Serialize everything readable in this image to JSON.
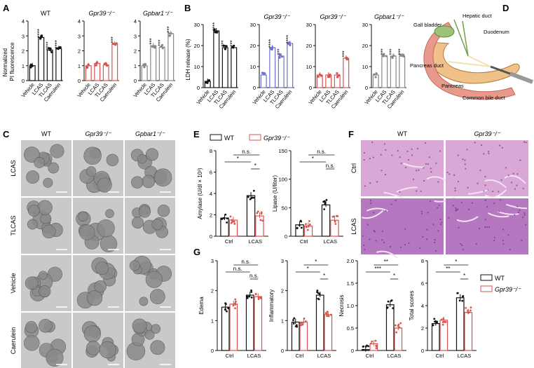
{
  "panel_labels": {
    "A": "A",
    "B": "B",
    "C": "C",
    "D": "D",
    "E": "E",
    "F": "F",
    "G": "G"
  },
  "colors": {
    "black": "#111111",
    "red": "#d9534f",
    "blue": "#6b73c7",
    "gray": "#888888"
  },
  "panel_a": {
    "ylabel": "Normalized\nPI fluorescence",
    "categories": [
      "Vehicle",
      "LCAS",
      "TLCAS",
      "Caerulein"
    ],
    "charts": [
      {
        "title": "WT",
        "ylim": [
          0,
          4
        ],
        "yticks": [
          "0",
          "1",
          "2",
          "3",
          "4"
        ],
        "color": "#111111",
        "values": [
          1.0,
          2.9,
          2.05,
          2.15
        ],
        "stars": [
          "",
          "****",
          "****",
          "****"
        ]
      },
      {
        "title": "Gpr39⁻/⁻",
        "ylim": [
          0,
          4
        ],
        "yticks": [
          "0",
          "1",
          "2",
          "3",
          "4"
        ],
        "color": "#d9534f",
        "values": [
          1.0,
          1.15,
          1.05,
          2.45
        ],
        "stars": [
          "",
          "",
          "",
          "***"
        ]
      },
      {
        "title": "Gpbar1⁻/⁻",
        "ylim": [
          0,
          4
        ],
        "yticks": [
          "0",
          "1",
          "2",
          "3",
          "4"
        ],
        "color": "#888888",
        "values": [
          1.0,
          2.35,
          2.25,
          3.15
        ],
        "stars": [
          "",
          "***",
          "***",
          "***"
        ]
      }
    ]
  },
  "panel_b": {
    "ylabel": "LDH release (%)",
    "categories": [
      "Vehicle",
      "LCAS",
      "TLCAS",
      "Caerulein"
    ],
    "charts": [
      {
        "title": "",
        "ylim": [
          0,
          30
        ],
        "yticks": [
          "0",
          "10",
          "20",
          "30"
        ],
        "color": "#111111",
        "values": [
          3,
          27,
          19,
          19
        ],
        "stars": [
          "",
          "****",
          "***",
          "***"
        ]
      },
      {
        "title": "Gpr39⁻/⁻",
        "ylim": [
          0,
          30
        ],
        "yticks": [
          "0",
          "10",
          "20",
          "30"
        ],
        "color": "#6b73c7",
        "values": [
          6,
          19,
          15,
          21
        ],
        "stars": [
          "",
          "****",
          "***",
          "****"
        ]
      },
      {
        "title": "Gpr39⁻/⁻",
        "ylim": [
          0,
          30
        ],
        "yticks": [
          "0",
          "10",
          "20",
          "30"
        ],
        "color": "#d9534f",
        "values": [
          6,
          6,
          6,
          14
        ],
        "stars": [
          "",
          "",
          "",
          "***"
        ]
      },
      {
        "title": "Gpbar1⁻/⁻",
        "ylim": [
          0,
          30
        ],
        "yticks": [
          "0",
          "10",
          "20",
          "30"
        ],
        "color": "#888888",
        "values": [
          6,
          15,
          15,
          15
        ],
        "stars": [
          "",
          "***",
          "***",
          "***"
        ]
      }
    ]
  },
  "panel_c": {
    "columns": [
      "WT",
      "Gpr39⁻/⁻",
      "Gpbar1⁻/⁻"
    ],
    "rows": [
      "LCAS",
      "TLCAS",
      "Vehicle",
      "Caerulein"
    ]
  },
  "panel_d": {
    "labels": [
      "Hepatic duct",
      "Gall bladder",
      "Duodenum",
      "Pancreas duct",
      "Pancreas",
      "Common bile duct"
    ]
  },
  "panel_e": {
    "legend": [
      "WT",
      "Gpr39⁻/⁻"
    ],
    "categories": [
      "Ctrl",
      "LCAS"
    ],
    "charts": [
      {
        "ylabel": "Amylase (U/dl × 10³)",
        "ylim": [
          0,
          8
        ],
        "yticks": [
          "0",
          "2",
          "4",
          "6",
          "8"
        ],
        "values": {
          "wt": [
            1.7,
            3.8
          ],
          "ko": [
            1.5,
            1.9
          ]
        },
        "sig": [
          "*",
          "*",
          "n.s."
        ]
      },
      {
        "ylabel": "Lipase (U/liter)",
        "ylim": [
          0,
          150
        ],
        "yticks": [
          "0",
          "50",
          "100",
          "150"
        ],
        "values": {
          "wt": [
            20,
            55
          ],
          "ko": [
            18,
            28
          ]
        },
        "sig": [
          "*",
          "n.s.",
          "n.s."
        ]
      }
    ]
  },
  "panel_f": {
    "columns": [
      "WT",
      "Gpr39⁻/⁻"
    ],
    "rows": [
      "Ctrl",
      "LCAS"
    ]
  },
  "panel_g": {
    "legend": [
      "WT",
      "Gpr39⁻/⁻"
    ],
    "categories": [
      "Ctrl",
      "LCAS"
    ],
    "charts": [
      {
        "ylabel": "Edema",
        "ylim": [
          0,
          3
        ],
        "yticks": [
          "0",
          "1",
          "2",
          "3"
        ],
        "values": {
          "wt": [
            1.45,
            1.85
          ],
          "ko": [
            1.55,
            1.8
          ]
        },
        "sig": [
          "n.s.",
          "n.s.",
          "n.s."
        ]
      },
      {
        "ylabel": "Inflammatory",
        "ylim": [
          0,
          3
        ],
        "yticks": [
          "0",
          "1",
          "2",
          "3"
        ],
        "values": {
          "wt": [
            0.95,
            1.85
          ],
          "ko": [
            0.95,
            1.2
          ]
        },
        "sig": [
          "*",
          "*",
          "*"
        ]
      },
      {
        "ylabel": "Necrosis",
        "ylim": [
          0,
          2.0
        ],
        "yticks": [
          "0",
          "0.5",
          "1.0",
          "1.5",
          "2.0"
        ],
        "values": {
          "wt": [
            0.02,
            1.02
          ],
          "ko": [
            0.15,
            0.5
          ]
        },
        "sig": [
          "***",
          "*",
          "**"
        ]
      },
      {
        "ylabel": "Total scores",
        "ylim": [
          0,
          8
        ],
        "yticks": [
          "0",
          "2",
          "4",
          "6",
          "8"
        ],
        "values": {
          "wt": [
            2.4,
            4.7
          ],
          "ko": [
            2.7,
            3.4
          ]
        },
        "sig": [
          "**",
          "*",
          "*"
        ]
      }
    ]
  }
}
